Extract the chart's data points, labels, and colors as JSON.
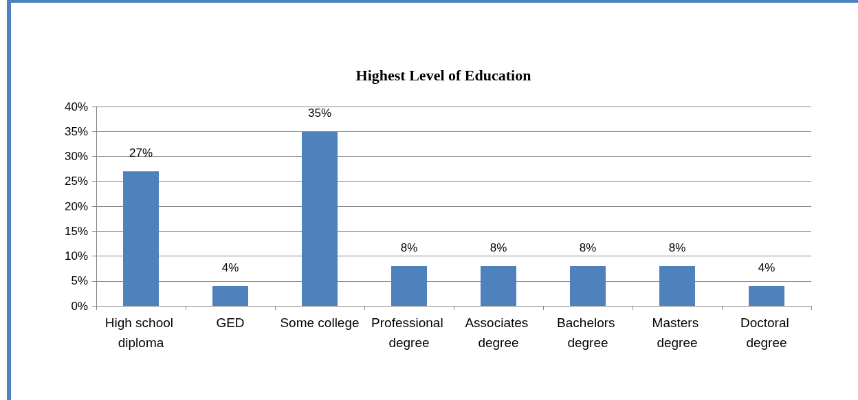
{
  "chart_data": {
    "type": "bar",
    "title": "Highest Level of Education",
    "categories": [
      "High school diploma",
      "GED",
      "Some college",
      "Professional degree",
      "Associates degree",
      "Bachelors degree",
      "Masters degree",
      "Doctoral degree"
    ],
    "values": [
      27,
      4,
      35,
      8,
      8,
      8,
      8,
      4
    ],
    "value_labels": [
      "27%",
      "4%",
      "35%",
      "8%",
      "8%",
      "8%",
      "8%",
      "4%"
    ],
    "color": "#4f81bd",
    "ylim": [
      0,
      40
    ],
    "yticks": [
      {
        "value": 0,
        "label": "0%"
      },
      {
        "value": 5,
        "label": "5%"
      },
      {
        "value": 10,
        "label": "10%"
      },
      {
        "value": 15,
        "label": "15%"
      },
      {
        "value": 20,
        "label": "20%"
      },
      {
        "value": 25,
        "label": "25%"
      },
      {
        "value": 30,
        "label": "30%"
      },
      {
        "value": 35,
        "label": "35%"
      },
      {
        "value": 40,
        "label": "40%"
      }
    ],
    "grid": "y"
  }
}
